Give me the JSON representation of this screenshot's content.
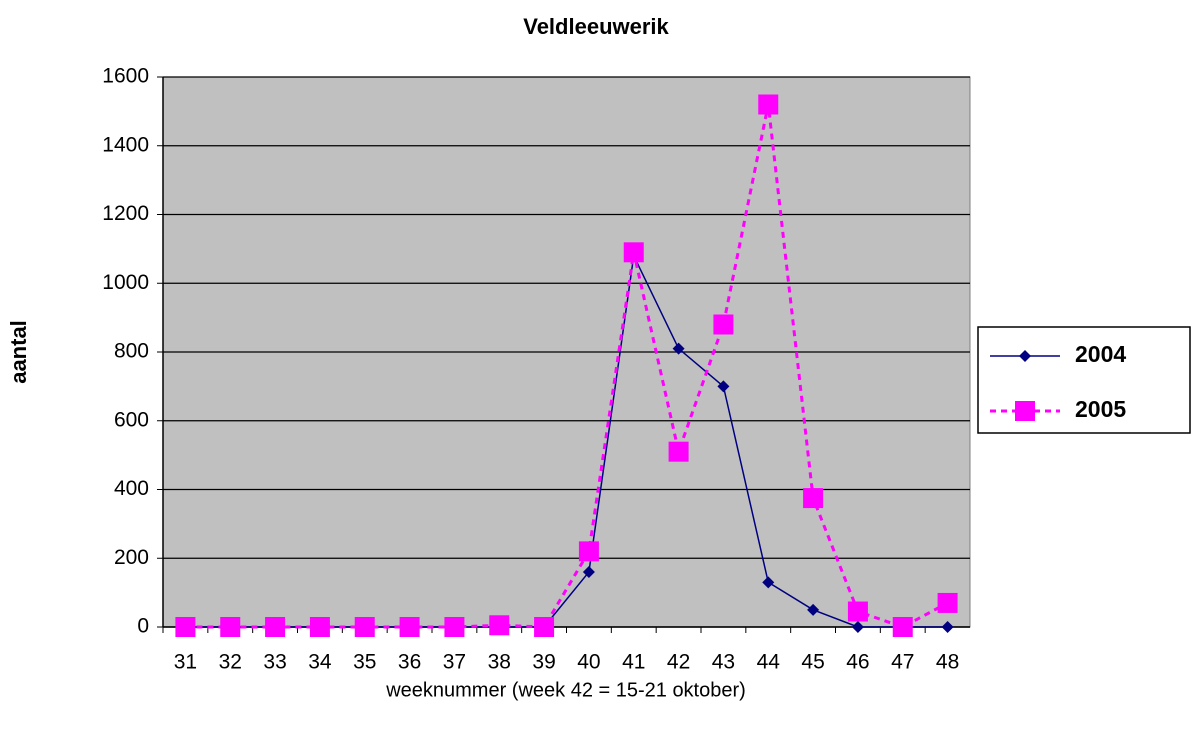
{
  "chart_data": {
    "type": "line",
    "title": "Veldleeuwerik",
    "x_label": "weeknummer (week 42 = 15-21 oktober)",
    "y_label": "aantal",
    "categories": [
      "31",
      "32",
      "33",
      "34",
      "35",
      "36",
      "37",
      "38",
      "39",
      "40",
      "41",
      "42",
      "43",
      "44",
      "45",
      "46",
      "47",
      "48"
    ],
    "series": [
      {
        "name": "2004",
        "color": "#000080",
        "marker": "diamond",
        "dash": false,
        "values": [
          0,
          0,
          0,
          0,
          0,
          0,
          0,
          0,
          0,
          160,
          1080,
          810,
          700,
          130,
          50,
          0,
          0,
          0
        ]
      },
      {
        "name": "2005",
        "color": "#ff00ff",
        "marker": "square",
        "dash": true,
        "values": [
          0,
          0,
          0,
          0,
          0,
          0,
          0,
          5,
          0,
          220,
          1090,
          510,
          880,
          1520,
          375,
          45,
          0,
          70
        ]
      }
    ],
    "ylim": [
      0,
      1600
    ],
    "yticks": [
      0,
      200,
      400,
      600,
      800,
      1000,
      1200,
      1400,
      1600
    ],
    "grid": true,
    "legend": "right",
    "plot_background": "#c0c0c0"
  }
}
